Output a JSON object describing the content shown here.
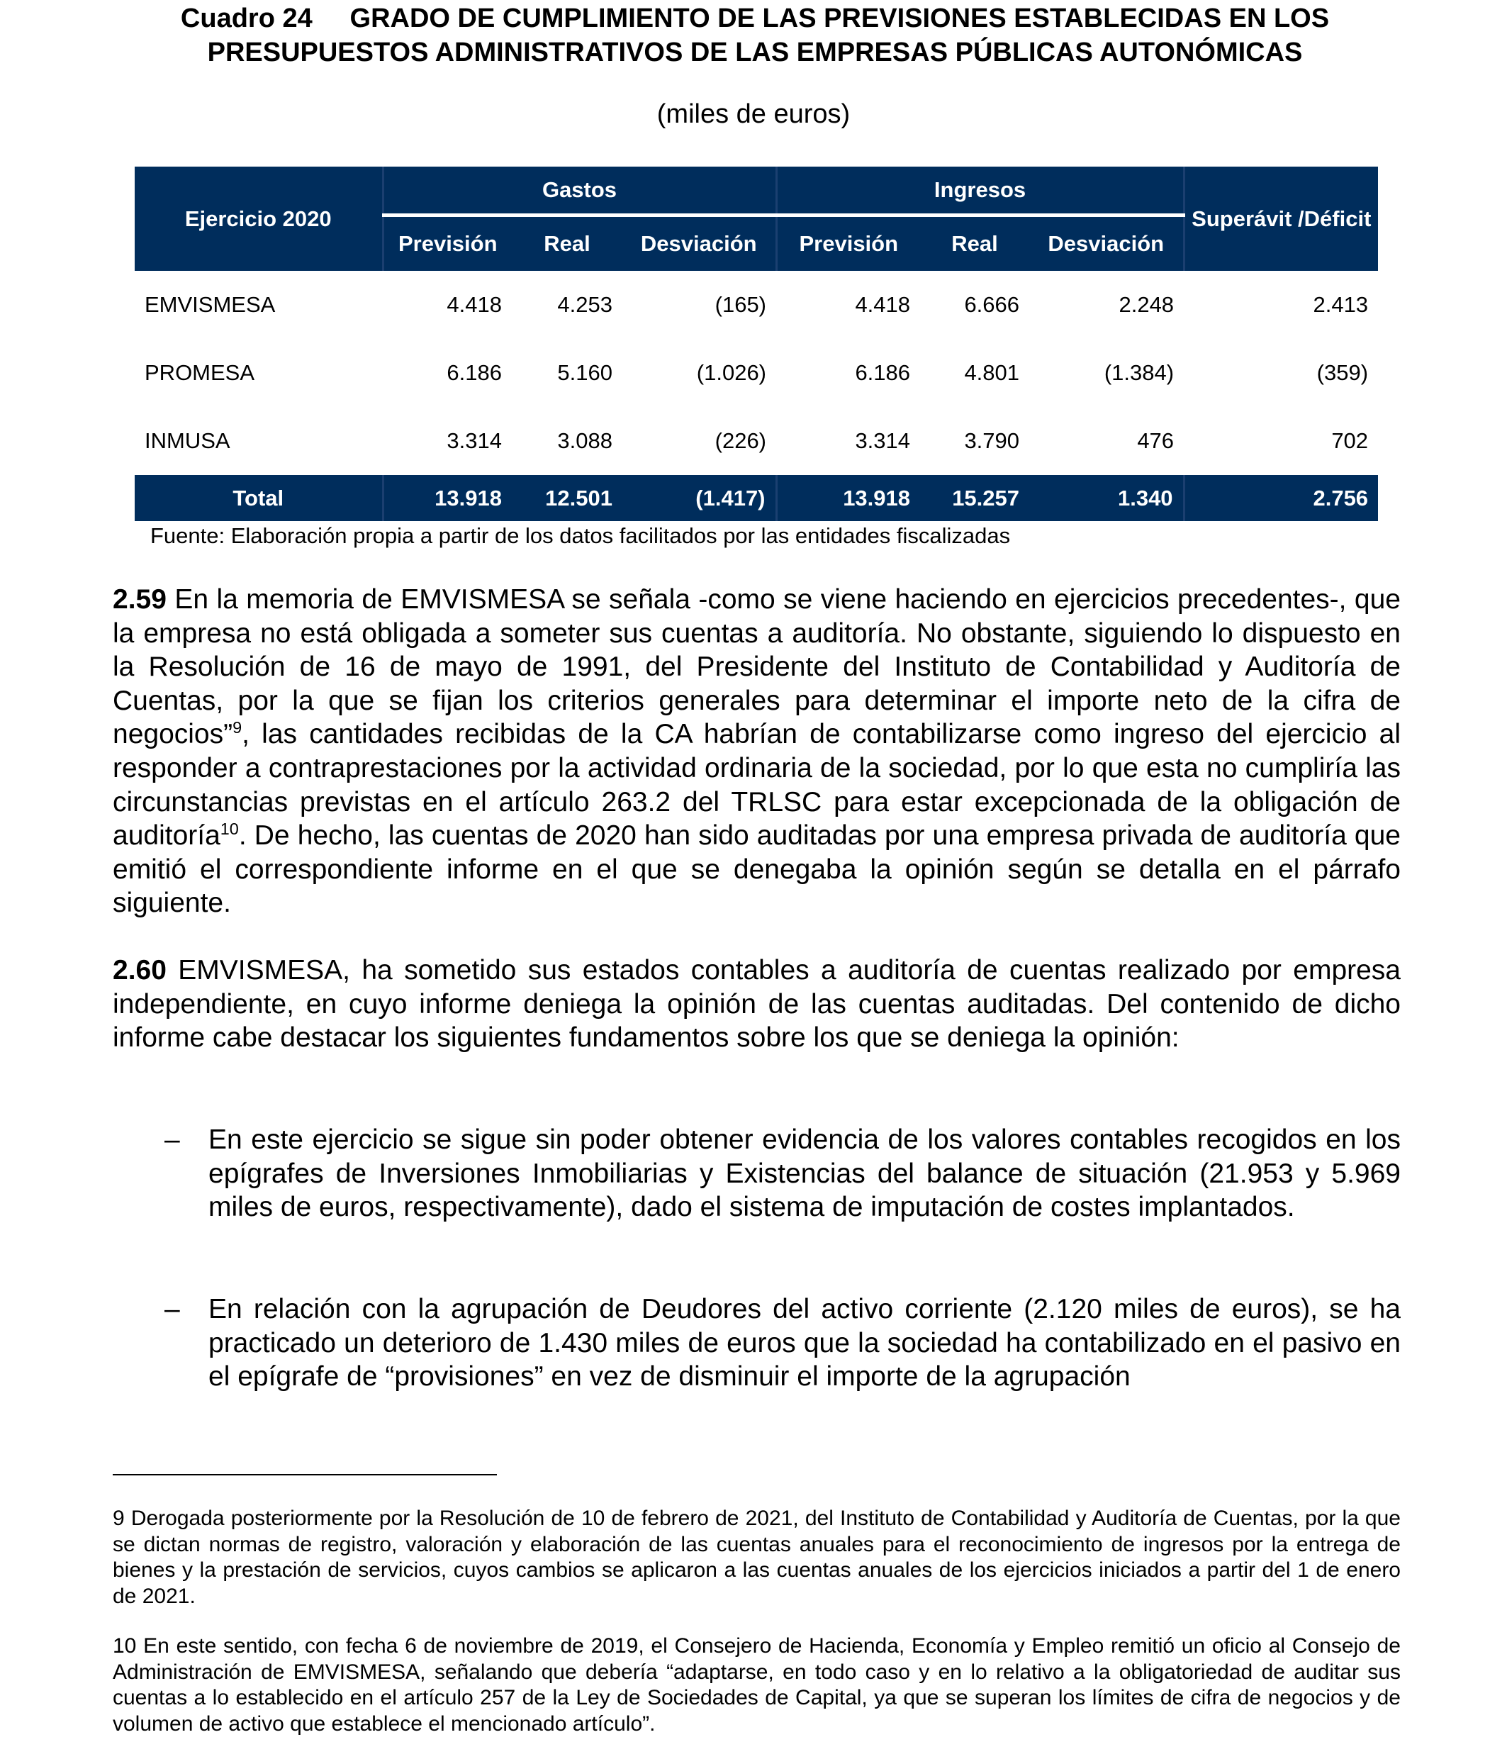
{
  "title": {
    "number": "Cuadro 24",
    "line1": "GRADO DE CUMPLIMIENTO DE LAS PREVISIONES ESTABLECIDAS EN LOS",
    "line2": "PRESUPUESTOS ADMINISTRATIVOS DE LAS EMPRESAS PÚBLICAS AUTONÓMICAS",
    "units": "(miles de euros)"
  },
  "table": {
    "row_header": "Ejercicio 2020",
    "groups": {
      "gastos": "Gastos",
      "ingresos": "Ingresos",
      "saldo": "Superávit /Déficit"
    },
    "sub": {
      "prevision": "Previsión",
      "real": "Real",
      "desviacion": "Desviación"
    },
    "rows": [
      {
        "name": "EMVISMESA",
        "values": [
          "4.418",
          "4.253",
          "(165)",
          "4.418",
          "6.666",
          "2.248",
          "2.413"
        ]
      },
      {
        "name": "PROMESA",
        "values": [
          "6.186",
          "5.160",
          "(1.026)",
          "6.186",
          "4.801",
          "(1.384)",
          "(359)"
        ]
      },
      {
        "name": "INMUSA",
        "values": [
          "3.314",
          "3.088",
          "(226)",
          "3.314",
          "3.790",
          "476",
          "702"
        ]
      }
    ],
    "total": {
      "name": "Total",
      "values": [
        "13.918",
        "12.501",
        "(1.417)",
        "13.918",
        "15.257",
        "1.340",
        "2.756"
      ]
    },
    "header_color": "#002d5c"
  },
  "source": "Fuente: Elaboración propia a partir de los datos facilitados por las entidades fiscalizadas",
  "p259": {
    "num": "2.59",
    "text_a": " En la memoria de EMVISMESA se señala -como se viene haciendo en ejercicios precedentes-, que la empresa no está obligada a someter sus cuentas a auditoría. No obstante, siguiendo lo dispuesto en la Resolución de 16 de mayo de 1991, del Presidente del Instituto de Contabilidad y Auditoría de Cuentas, por la que se fijan los criterios generales para determinar el importe neto de la cifra de negocios”",
    "ref_a": "9",
    "text_b": ", las cantidades recibidas de la CA habrían de contabilizarse como ingreso del ejercicio al responder a contraprestaciones por la actividad ordinaria de la sociedad, por lo que esta no cumpliría las circunstancias previstas en el artículo 263.2 del TRLSC para estar excepcionada de la obligación de auditoría",
    "ref_b": "10",
    "text_c": ". De hecho, las cuentas de 2020 han sido auditadas por una empresa privada de auditoría que emitió el correspondiente informe en el que se denegaba la opinión según se detalla en el párrafo siguiente."
  },
  "p260": {
    "num": "2.60",
    "text": " EMVISMESA, ha sometido sus estados contables a auditoría de cuentas realizado por empresa independiente, en cuyo informe deniega la opinión de las cuentas auditadas. Del contenido de dicho informe cabe destacar los siguientes fundamentos sobre los que se deniega la opinión:"
  },
  "bullets": [
    {
      "dash": "–",
      "text": "En este ejercicio se sigue sin poder obtener evidencia de los valores contables recogidos en los epígrafes de Inversiones Inmobiliarias y Existencias del balance de situación (21.953 y 5.969 miles de euros, respectivamente), dado el sistema de imputación de costes implantados."
    },
    {
      "dash": "–",
      "text": "En relación con la agrupación de Deudores del activo corriente (2.120 miles de euros), se ha practicado un deterioro de 1.430 miles de euros que la sociedad ha contabilizado en el pasivo en el epígrafe de “provisiones” en vez de disminuir el importe de la agrupación"
    }
  ],
  "footnotes": [
    "9 Derogada posteriormente por la Resolución de 10 de febrero de 2021, del Instituto de Contabilidad y Auditoría de Cuentas, por la que se dictan normas de registro, valoración y elaboración de las cuentas anuales para el reconocimiento de ingresos por la entrega de bienes y la prestación de servicios, cuyos cambios se aplicaron a las cuentas anuales de los ejercicios iniciados a partir del 1 de enero de 2021.",
    "10 En este sentido, con fecha 6 de noviembre de 2019, el Consejero de Hacienda, Economía y Empleo remitió un oficio al Consejo de Administración de EMVISMESA, señalando que debería “adaptarse, en todo caso y en lo relativo a la obligatoriedad de auditar sus cuentas a lo establecido en el artículo 257 de la Ley de Sociedades de Capital, ya que se superan los límites de cifra de negocios y de volumen de activo que establece el mencionado artículo”."
  ]
}
